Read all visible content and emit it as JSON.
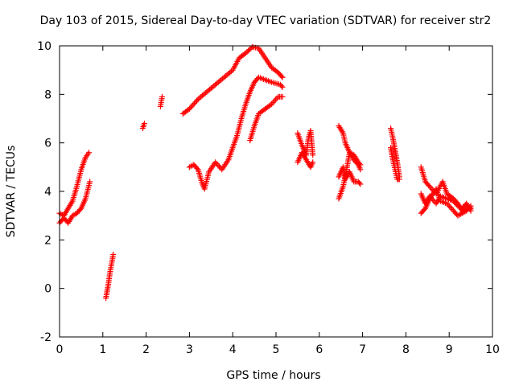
{
  "chart_data": {
    "type": "scatter",
    "title": "Day 103 of 2015, Sidereal Day-to-day VTEC variation (SDTVAR) for receiver str2",
    "xlabel": "GPS time / hours",
    "ylabel": "SDTVAR / TECUs",
    "xlim": [
      0,
      10
    ],
    "ylim": [
      -2,
      10
    ],
    "xticks": [
      "0",
      "1",
      "2",
      "3",
      "4",
      "5",
      "6",
      "7",
      "8",
      "9",
      "10"
    ],
    "yticks": [
      "-2",
      "0",
      "2",
      "4",
      "6",
      "8",
      "10"
    ],
    "marker": "plus",
    "color": "#ff0000",
    "grid": false,
    "legend": "none",
    "segments": [
      {
        "name": "seg-a",
        "points": [
          [
            0.0,
            3.1
          ],
          [
            0.1,
            3.0
          ],
          [
            0.2,
            3.3
          ],
          [
            0.3,
            3.6
          ],
          [
            0.4,
            4.2
          ],
          [
            0.5,
            4.9
          ],
          [
            0.6,
            5.4
          ],
          [
            0.68,
            5.6
          ]
        ]
      },
      {
        "name": "seg-b",
        "points": [
          [
            0.0,
            2.7
          ],
          [
            0.1,
            2.9
          ],
          [
            0.2,
            2.7
          ],
          [
            0.3,
            3.0
          ],
          [
            0.4,
            3.1
          ],
          [
            0.5,
            3.3
          ],
          [
            0.6,
            3.7
          ],
          [
            0.7,
            4.4
          ]
        ]
      },
      {
        "name": "seg-c",
        "points": [
          [
            1.07,
            -0.4
          ],
          [
            1.12,
            0.1
          ],
          [
            1.17,
            0.7
          ],
          [
            1.24,
            1.4
          ]
        ]
      },
      {
        "name": "seg-d",
        "points": [
          [
            1.92,
            6.6
          ],
          [
            1.96,
            6.8
          ]
        ]
      },
      {
        "name": "seg-e",
        "points": [
          [
            2.33,
            7.5
          ],
          [
            2.37,
            7.9
          ]
        ]
      },
      {
        "name": "seg-f",
        "points": [
          [
            2.85,
            7.2
          ],
          [
            3.0,
            7.4
          ],
          [
            3.2,
            7.8
          ],
          [
            3.4,
            8.1
          ],
          [
            3.6,
            8.4
          ],
          [
            3.8,
            8.7
          ],
          [
            4.0,
            9.0
          ],
          [
            4.15,
            9.5
          ],
          [
            4.3,
            9.7
          ],
          [
            4.45,
            9.95
          ],
          [
            4.6,
            9.9
          ],
          [
            4.75,
            9.5
          ],
          [
            4.9,
            9.1
          ],
          [
            5.05,
            8.9
          ],
          [
            5.15,
            8.7
          ]
        ]
      },
      {
        "name": "seg-g",
        "points": [
          [
            3.0,
            5.0
          ],
          [
            3.1,
            5.1
          ],
          [
            3.2,
            4.9
          ],
          [
            3.3,
            4.3
          ],
          [
            3.35,
            4.1
          ],
          [
            3.45,
            4.8
          ],
          [
            3.6,
            5.2
          ],
          [
            3.75,
            4.9
          ],
          [
            3.9,
            5.3
          ],
          [
            4.0,
            5.8
          ],
          [
            4.1,
            6.3
          ],
          [
            4.2,
            7.0
          ],
          [
            4.3,
            7.6
          ],
          [
            4.4,
            8.1
          ],
          [
            4.5,
            8.5
          ],
          [
            4.6,
            8.7
          ],
          [
            4.75,
            8.6
          ],
          [
            4.9,
            8.5
          ],
          [
            5.1,
            8.4
          ],
          [
            5.15,
            8.3
          ]
        ]
      },
      {
        "name": "seg-h",
        "points": [
          [
            4.4,
            6.1
          ],
          [
            4.5,
            6.7
          ],
          [
            4.6,
            7.2
          ],
          [
            4.75,
            7.4
          ],
          [
            4.9,
            7.6
          ],
          [
            5.05,
            7.9
          ],
          [
            5.15,
            7.9
          ]
        ]
      },
      {
        "name": "seg-i",
        "points": [
          [
            5.5,
            6.4
          ],
          [
            5.6,
            5.9
          ],
          [
            5.7,
            5.5
          ],
          [
            5.75,
            6.2
          ],
          [
            5.8,
            6.5
          ],
          [
            5.85,
            5.5
          ]
        ]
      },
      {
        "name": "seg-j",
        "points": [
          [
            5.5,
            5.2
          ],
          [
            5.6,
            5.6
          ],
          [
            5.7,
            5.3
          ],
          [
            5.8,
            5.0
          ],
          [
            5.85,
            5.2
          ]
        ]
      },
      {
        "name": "seg-k",
        "points": [
          [
            6.45,
            6.7
          ],
          [
            6.55,
            6.4
          ],
          [
            6.6,
            6.0
          ],
          [
            6.7,
            5.6
          ],
          [
            6.8,
            5.3
          ],
          [
            6.9,
            5.1
          ],
          [
            6.95,
            4.9
          ]
        ]
      },
      {
        "name": "seg-l",
        "points": [
          [
            6.45,
            4.6
          ],
          [
            6.55,
            5.0
          ],
          [
            6.6,
            4.5
          ],
          [
            6.7,
            4.8
          ],
          [
            6.8,
            4.4
          ],
          [
            6.9,
            4.4
          ],
          [
            6.95,
            4.3
          ]
        ]
      },
      {
        "name": "seg-m",
        "points": [
          [
            6.45,
            3.7
          ],
          [
            6.55,
            4.2
          ],
          [
            6.6,
            4.6
          ],
          [
            6.7,
            5.6
          ],
          [
            6.8,
            5.5
          ],
          [
            6.9,
            5.2
          ],
          [
            6.95,
            5.1
          ]
        ]
      },
      {
        "name": "seg-n",
        "points": [
          [
            7.65,
            6.6
          ],
          [
            7.7,
            6.2
          ],
          [
            7.75,
            5.7
          ],
          [
            7.8,
            5.2
          ],
          [
            7.85,
            4.6
          ]
        ]
      },
      {
        "name": "seg-o",
        "points": [
          [
            7.65,
            5.8
          ],
          [
            7.7,
            5.3
          ],
          [
            7.75,
            4.9
          ],
          [
            7.8,
            4.5
          ],
          [
            7.85,
            4.5
          ]
        ]
      },
      {
        "name": "seg-p",
        "points": [
          [
            8.35,
            5.0
          ],
          [
            8.45,
            4.4
          ],
          [
            8.55,
            4.2
          ],
          [
            8.7,
            3.9
          ],
          [
            8.85,
            4.4
          ],
          [
            8.95,
            3.9
          ],
          [
            9.1,
            3.7
          ],
          [
            9.2,
            3.5
          ],
          [
            9.3,
            3.2
          ],
          [
            9.4,
            3.3
          ],
          [
            9.5,
            3.3
          ]
        ]
      },
      {
        "name": "seg-q",
        "points": [
          [
            8.35,
            3.1
          ],
          [
            8.45,
            3.3
          ],
          [
            8.55,
            3.7
          ],
          [
            8.7,
            4.1
          ],
          [
            8.8,
            3.6
          ],
          [
            8.95,
            3.5
          ],
          [
            9.1,
            3.2
          ],
          [
            9.2,
            3.0
          ],
          [
            9.3,
            3.1
          ],
          [
            9.4,
            3.2
          ],
          [
            9.5,
            3.4
          ]
        ]
      },
      {
        "name": "seg-r",
        "points": [
          [
            8.35,
            3.9
          ],
          [
            8.45,
            3.5
          ],
          [
            8.55,
            3.8
          ],
          [
            8.7,
            3.5
          ],
          [
            8.8,
            3.8
          ],
          [
            8.95,
            3.7
          ],
          [
            9.1,
            3.6
          ],
          [
            9.2,
            3.4
          ],
          [
            9.3,
            3.3
          ],
          [
            9.4,
            3.5
          ],
          [
            9.5,
            3.2
          ]
        ]
      }
    ]
  }
}
